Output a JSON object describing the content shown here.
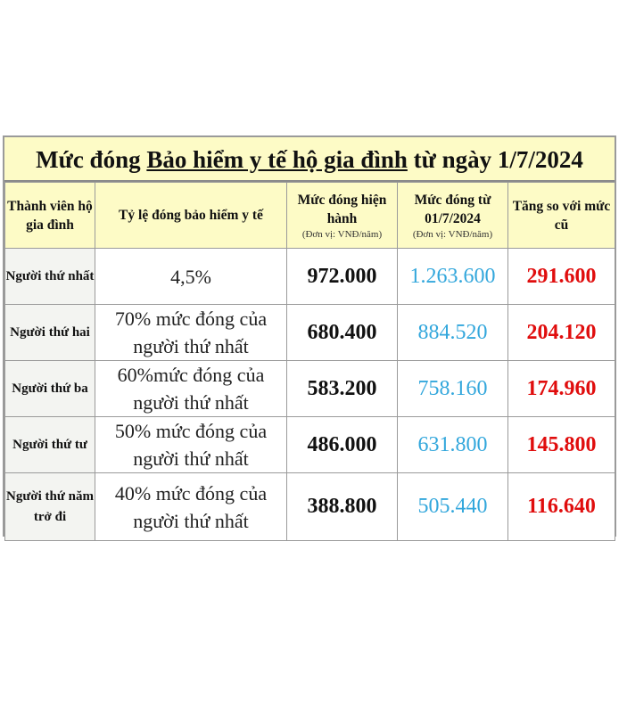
{
  "title": {
    "part1": "Mức đóng",
    "part2": "Bảo hiểm y tế hộ gia đình",
    "part3": "từ ngày 1/7/2024"
  },
  "headers": {
    "member": "Thành viên hộ gia đình",
    "ratio": "Tỷ lệ đóng bảo hiểm y tế",
    "current": "Mức đóng hiện hành",
    "current_unit": "(Đơn vị: VNĐ/năm)",
    "new": "Mức đóng từ 01/7/2024",
    "new_unit": "(Đơn vị: VNĐ/năm)",
    "increase": "Tăng so với mức cũ"
  },
  "colors": {
    "header_bg": "#fdfbc6",
    "new_value": "#33a7dc",
    "increase_value": "#e00d0d"
  },
  "rows": [
    {
      "member": "Người thứ nhất",
      "ratio": "4,5%",
      "current": "972.000",
      "new": "1.263.600",
      "increase": "291.600"
    },
    {
      "member": "Người thứ hai",
      "ratio": "70% mức đóng của người thứ nhất",
      "current": "680.400",
      "new": "884.520",
      "increase": "204.120"
    },
    {
      "member": "Người thứ ba",
      "ratio": "60%mức đóng của người thứ nhất",
      "current": "583.200",
      "new": "758.160",
      "increase": "174.960"
    },
    {
      "member": "Người thứ tư",
      "ratio": "50% mức đóng của người thứ nhất",
      "current": "486.000",
      "new": "631.800",
      "increase": "145.800"
    },
    {
      "member": "Người thứ năm trở đi",
      "ratio": "40% mức đóng của người thứ nhất",
      "current": "388.800",
      "new": "505.440",
      "increase": "116.640"
    }
  ]
}
